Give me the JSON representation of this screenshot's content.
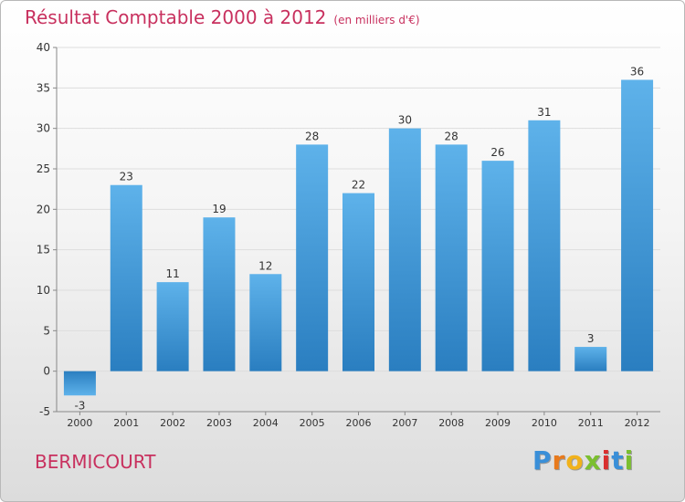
{
  "chart_data": {
    "type": "bar",
    "title": "Résultat Comptable 2000 à 2012",
    "subtitle": "(en milliers d'€)",
    "xlabel": "",
    "ylabel": "",
    "categories": [
      "2000",
      "2001",
      "2002",
      "2003",
      "2004",
      "2005",
      "2006",
      "2007",
      "2008",
      "2009",
      "2010",
      "2011",
      "2012"
    ],
    "values": [
      -3,
      23,
      11,
      19,
      12,
      28,
      22,
      30,
      28,
      26,
      31,
      3,
      36
    ],
    "ylim": [
      -5,
      40
    ],
    "yticks": [
      -5,
      0,
      5,
      10,
      15,
      20,
      25,
      30,
      35,
      40
    ],
    "grid": true,
    "legend": "none"
  },
  "footer": {
    "commune": "BERMICOURT",
    "brand_letters": [
      "P",
      "r",
      "o",
      "x",
      "i",
      "t",
      "i"
    ],
    "brand_colors": [
      "#3a8fd8",
      "#e87a1c",
      "#f1b21b",
      "#7bbf2f",
      "#d92f2f",
      "#3a8fd8",
      "#7bbf2f"
    ]
  },
  "colors": {
    "title": "#c8305e",
    "bar_top": "#5eb2ea",
    "bar_bottom": "#2a7ec0",
    "axis": "#888888",
    "grid": "#dddddd",
    "label": "#333333"
  }
}
